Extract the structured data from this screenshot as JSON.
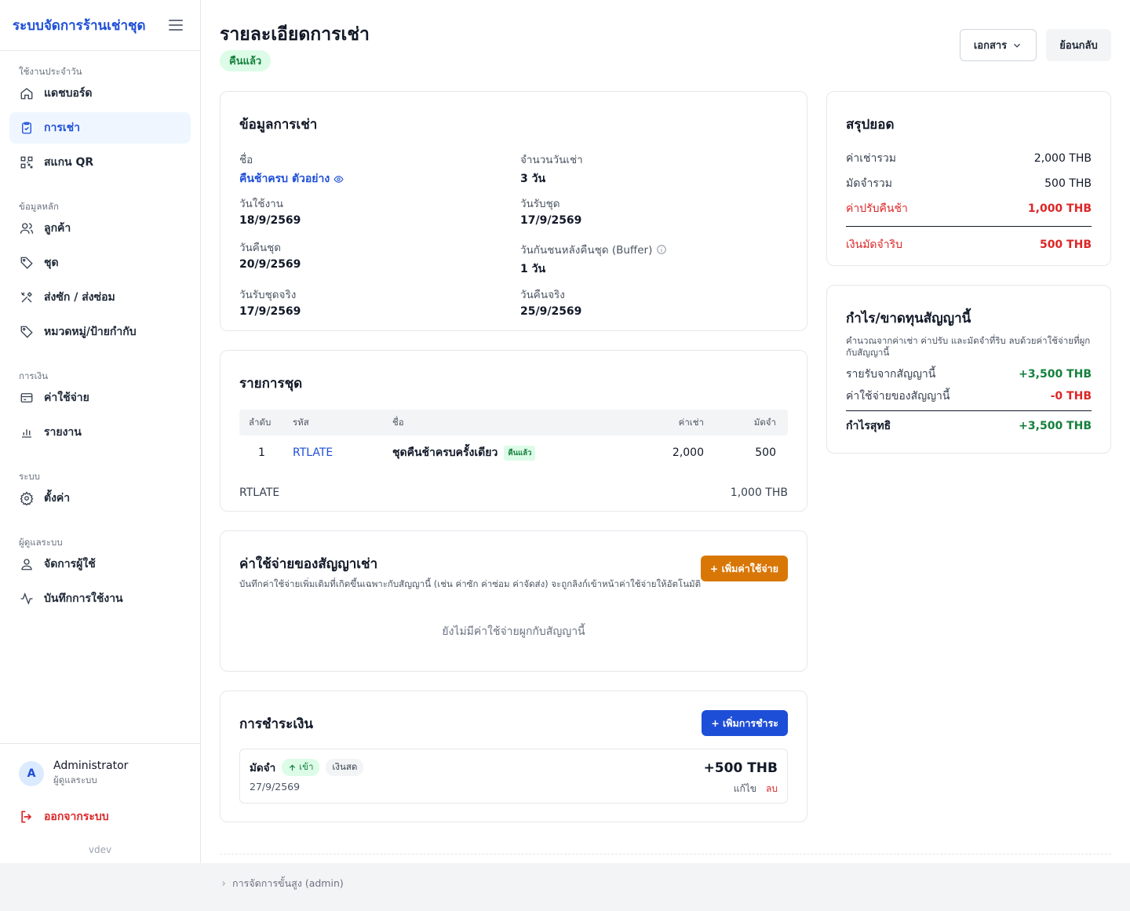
{
  "sidebar": {
    "title": "ระบบจัดการร้านเช่าชุด",
    "sections": {
      "daily": "ใช้งานประจำวัน",
      "master": "ข้อมูลหลัก",
      "finance": "การเงิน",
      "system": "ระบบ",
      "admin": "ผู้ดูแลระบบ"
    },
    "items": {
      "dashboard": "แดชบอร์ด",
      "rentals": "การเช่า",
      "scan": "สแกน QR",
      "customers": "ลูกค้า",
      "outfits": "ชุด",
      "laundry": "ส่งซัก / ส่งซ่อม",
      "categories": "หมวดหมู่/ป้ายกำกับ",
      "expenses": "ค่าใช้จ่าย",
      "reports": "รายงาน",
      "settings": "ตั้งค่า",
      "users": "จัดการผู้ใช้",
      "logs": "บันทึกการใช้งาน"
    },
    "user": {
      "initial": "A",
      "name": "Administrator",
      "role": "ผู้ดูแลระบบ"
    },
    "logout": "ออกจากระบบ",
    "version": "vdev"
  },
  "header": {
    "title": "รายละเอียดการเช่า",
    "status": "คืนแล้ว",
    "docs_button": "เอกสาร",
    "back_button": "ย้อนกลับ"
  },
  "rental_info": {
    "title": "ข้อมูลการเช่า",
    "name_label": "ชื่อ",
    "name_value": "คืนช้าครบ ตัวอย่าง",
    "days_label": "จำนวนวันเช่า",
    "days_value": "3 วัน",
    "use_date_label": "วันใช้งาน",
    "use_date_value": "18/9/2569",
    "pickup_label": "วันรับชุด",
    "pickup_value": "17/9/2569",
    "return_label": "วันคืนชุด",
    "return_value": "20/9/2569",
    "buffer_label": "วันกันชนหลังคืนชุด (Buffer)",
    "buffer_value": "1 วัน",
    "actual_pickup_label": "วันรับชุดจริง",
    "actual_pickup_value": "17/9/2569",
    "actual_return_label": "วันคืนจริง",
    "actual_return_value": "25/9/2569"
  },
  "items": {
    "title": "รายการชุด",
    "columns": {
      "no": "ลำดับ",
      "code": "รหัส",
      "name": "ชื่อ",
      "rent": "ค่าเช่า",
      "deposit": "มัดจำ"
    },
    "rows": [
      {
        "no": "1",
        "code": "RTLATE",
        "name": "ชุดคืนช้าครบครั้งเดียว",
        "tag": "คืนแล้ว",
        "rent": "2,000",
        "deposit": "500"
      }
    ],
    "late_code": "RTLATE",
    "late_amount": "1,000 THB"
  },
  "expenses": {
    "title": "ค่าใช้จ่ายของสัญญาเช่า",
    "subtitle": "บันทึกค่าใช้จ่ายเพิ่มเติมที่เกิดขึ้นเฉพาะกับสัญญานี้ (เช่น ค่าซัก ค่าซ่อม ค่าจัดส่ง) จะถูกลิงก์เข้าหน้าค่าใช้จ่ายให้อัตโนมัติ",
    "add_button": "+ เพิ่มค่าใช้จ่าย",
    "empty": "ยังไม่มีค่าใช้จ่ายผูกกับสัญญานี้"
  },
  "payments": {
    "title": "การชำระเงิน",
    "add_button": "+ เพิ่มการชำระ",
    "list": [
      {
        "type": "มัดจำ",
        "direction": "เข้า",
        "method": "เงินสด",
        "date": "27/9/2569",
        "amount": "+500 THB",
        "edit": "แก้ไข",
        "delete": "ลบ"
      }
    ]
  },
  "summary": {
    "title": "สรุปยอด",
    "rows": [
      {
        "label": "ค่าเช่ารวม",
        "value": "2,000 THB"
      },
      {
        "label": "มัดจำรวม",
        "value": "500 THB"
      },
      {
        "label": "ค่าปรับคืนช้า",
        "value": "1,000 THB"
      }
    ],
    "refund_label": "เงินมัดจำริบ",
    "refund_value": "500 THB"
  },
  "profit": {
    "title": "กำไร/ขาดทุนสัญญานี้",
    "subtitle": "คำนวณจากค่าเช่า ค่าปรับ และมัดจำที่ริบ ลบด้วยค่าใช้จ่ายที่ผูกกับสัญญานี้",
    "income_label": "รายรับจากสัญญานี้",
    "income_value": "+3,500 THB",
    "expense_label": "ค่าใช้จ่ายของสัญญานี้",
    "expense_value": "-0 THB",
    "net_label": "กำไรสุทธิ",
    "net_value": "+3,500 THB"
  },
  "footer": {
    "advanced": "การจัดการขั้นสูง (admin)"
  },
  "colors": {
    "primary": "#1d4ed8",
    "success": "#15803d",
    "danger": "#dc2626",
    "warning": "#d97706"
  }
}
